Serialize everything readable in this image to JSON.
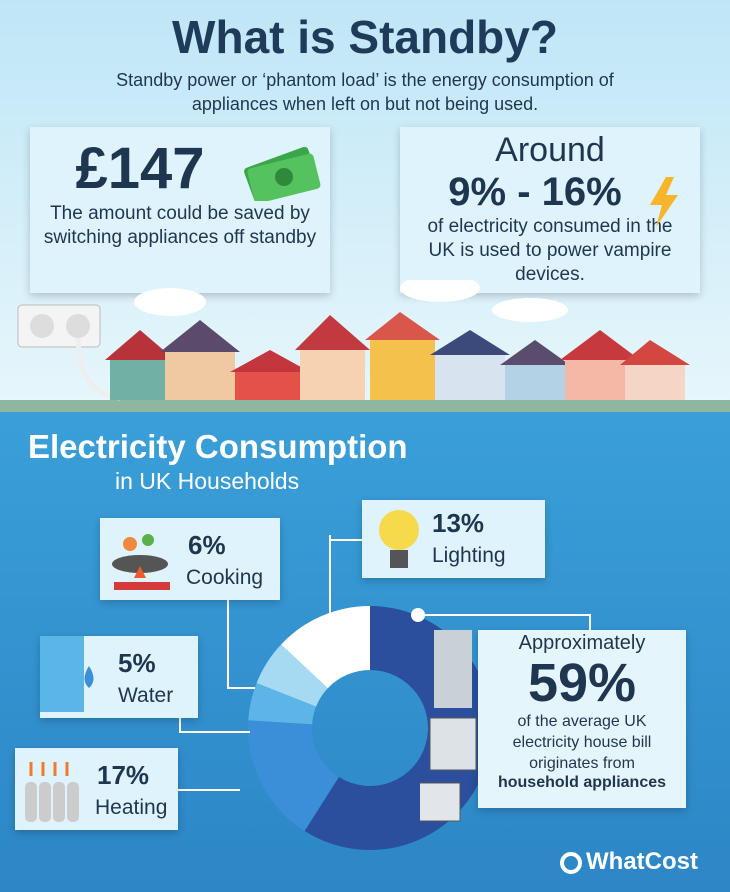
{
  "header": {
    "title": "What is Standby?",
    "subtitle": "Standby power or ‘phantom load’ is the energy consumption of appliances when left on but not being used."
  },
  "stats": [
    {
      "value": "£147",
      "text": "The amount could be saved by switching appliances off standby"
    },
    {
      "prefix": "Around",
      "value": "9% - 16%",
      "text": "of electricity consumed in the UK is used to power vampire devices."
    }
  ],
  "chart_data": {
    "type": "pie",
    "donut": true,
    "title": "Electricity Consumption",
    "subtitle": "in UK Households",
    "categories": [
      null,
      "Heating",
      "Water",
      "Cooking",
      "Lighting"
    ],
    "values": [
      59,
      17,
      5,
      6,
      13
    ],
    "value_labels": [
      "59%",
      "17%",
      "5%",
      "6%",
      "13%"
    ],
    "colors": [
      "#2b4f9c",
      "#3b8fd8",
      "#5db4e6",
      "#a6daf3",
      "#ffffff"
    ],
    "annotation_lead": "Approximately",
    "annotation": "of the average UK electricity house bill originates from",
    "annotation_bold": "household appliances"
  },
  "brand": "WhatCost"
}
